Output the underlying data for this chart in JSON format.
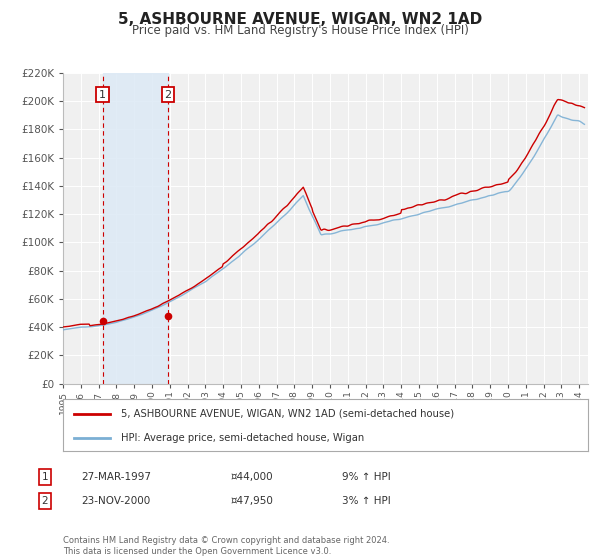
{
  "title": "5, ASHBOURNE AVENUE, WIGAN, WN2 1AD",
  "subtitle": "Price paid vs. HM Land Registry's House Price Index (HPI)",
  "title_fontsize": 11,
  "subtitle_fontsize": 8.5,
  "ylim": [
    0,
    220000
  ],
  "background_color": "#ffffff",
  "plot_bg_color": "#f0f0f0",
  "grid_color": "#ffffff",
  "hpi_color": "#7bafd4",
  "price_color": "#cc0000",
  "sale1_date": 1997.23,
  "sale1_price": 44000,
  "sale1_label": "1",
  "sale2_date": 2000.9,
  "sale2_price": 47950,
  "sale2_label": "2",
  "shade_color": "#dce9f5",
  "legend_line1": "5, ASHBOURNE AVENUE, WIGAN, WN2 1AD (semi-detached house)",
  "legend_line2": "HPI: Average price, semi-detached house, Wigan",
  "table_row1_num": "1",
  "table_row1_date": "27-MAR-1997",
  "table_row1_price": "¤44,000",
  "table_row1_hpi": "9% ↑ HPI",
  "table_row2_num": "2",
  "table_row2_date": "23-NOV-2000",
  "table_row2_price": "¤47,950",
  "table_row2_hpi": "3% ↑ HPI",
  "footer": "Contains HM Land Registry data © Crown copyright and database right 2024.\nThis data is licensed under the Open Government Licence v3.0.",
  "xmin": 1995,
  "xmax": 2024.5
}
